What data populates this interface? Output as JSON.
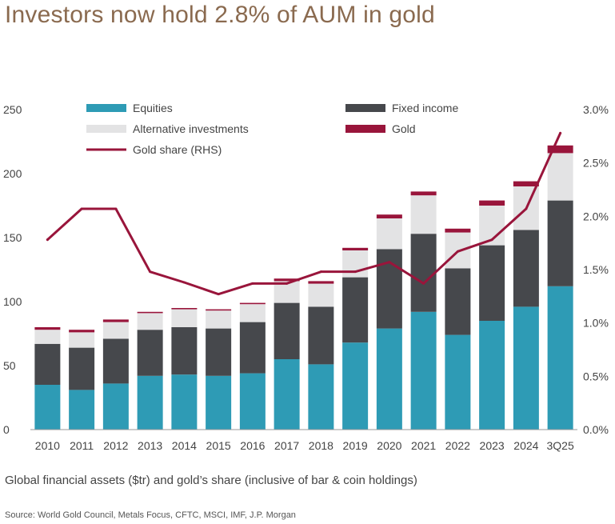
{
  "title": "Investors now hold 2.8% of AUM in gold",
  "caption": "Global financial assets ($tr) and gold’s share (inclusive of bar & coin holdings)",
  "source": "Source: World Gold Council, Metals Focus, CFTC, MSCI, IMF, J.P. Morgan",
  "colors": {
    "equities": "#2e9bb5",
    "fixed_income": "#46484c",
    "alternative": "#e3e3e4",
    "gold": "#99153b",
    "gold_share_line": "#99153b",
    "title": "#8a6a4f"
  },
  "chart_data": {
    "type": "bar",
    "stacked": true,
    "categories": [
      "2010",
      "2011",
      "2012",
      "2013",
      "2014",
      "2015",
      "2016",
      "2017",
      "2018",
      "2019",
      "2020",
      "2021",
      "2022",
      "2023",
      "2024",
      "3Q25"
    ],
    "series": [
      {
        "name": "Equities",
        "values": [
          35,
          31,
          36,
          42,
          43,
          42,
          44,
          55,
          51,
          68,
          79,
          92,
          74,
          85,
          96,
          112
        ]
      },
      {
        "name": "Fixed income",
        "values": [
          32,
          33,
          35,
          36,
          37,
          37,
          40,
          44,
          45,
          51,
          62,
          61,
          52,
          59,
          60,
          67
        ]
      },
      {
        "name": "Alternative investments",
        "values": [
          11,
          12,
          13,
          13,
          14,
          14,
          14,
          17,
          18,
          21,
          24,
          30,
          28,
          31,
          34,
          37
        ]
      },
      {
        "name": "Gold",
        "values": [
          2,
          2,
          2,
          1,
          1,
          1,
          1,
          2,
          2,
          2,
          3,
          3,
          3,
          4,
          4,
          6
        ]
      }
    ],
    "line_series": {
      "name": "Gold share (RHS)",
      "axis": "right",
      "values": [
        1.78,
        2.07,
        2.07,
        1.48,
        1.38,
        1.27,
        1.37,
        1.37,
        1.48,
        1.48,
        1.57,
        1.37,
        1.67,
        1.78,
        2.07,
        2.78
      ]
    },
    "y_left": {
      "ylim": [
        0,
        250
      ],
      "ticks": [
        "0",
        "50",
        "100",
        "150",
        "200",
        "250"
      ]
    },
    "y_right": {
      "ylim": [
        0,
        3.0
      ],
      "ticks": [
        "0.0%",
        "0.5%",
        "1.0%",
        "1.5%",
        "2.0%",
        "2.5%",
        "3.0%"
      ]
    },
    "legend_placement": "top",
    "grid": false
  }
}
